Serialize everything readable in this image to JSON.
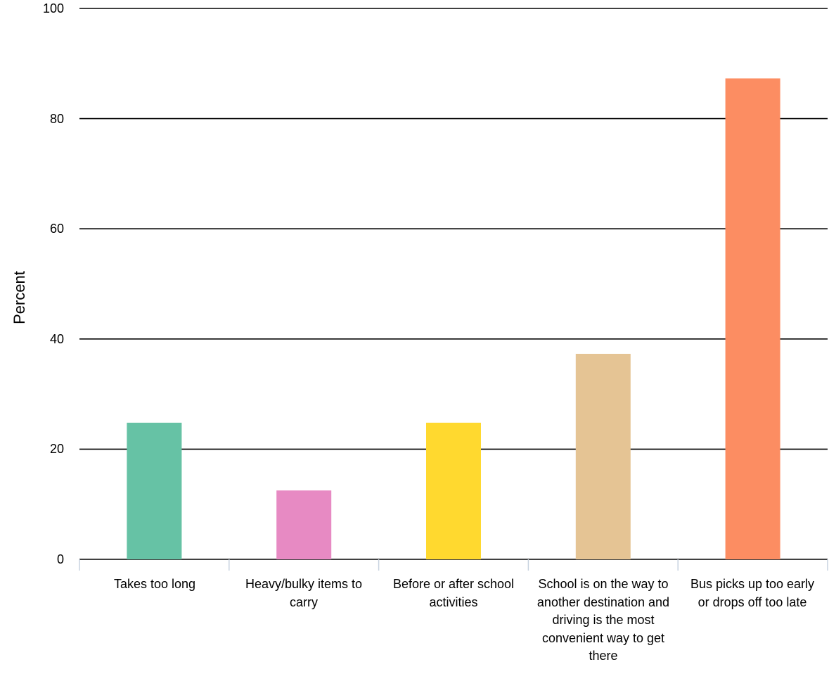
{
  "chart_data": {
    "type": "bar",
    "ylabel": "Percent",
    "xlabel": "",
    "ylim": [
      0,
      100
    ],
    "yticks": [
      "0",
      "20",
      "40",
      "60",
      "80",
      "100"
    ],
    "grid": true,
    "categories": [
      "Takes too long",
      "Heavy/bulky items to carry",
      "Before or after school activities",
      "School is on the way to another destination and driving is the most convenient way to get there",
      "Bus picks up too early or drops off too late"
    ],
    "values": [
      24.8,
      12.5,
      24.8,
      37.3,
      87.3
    ],
    "colors": [
      "#66c2a5",
      "#e78ac3",
      "#ffd92f",
      "#e5c494",
      "#fc8d62"
    ]
  }
}
